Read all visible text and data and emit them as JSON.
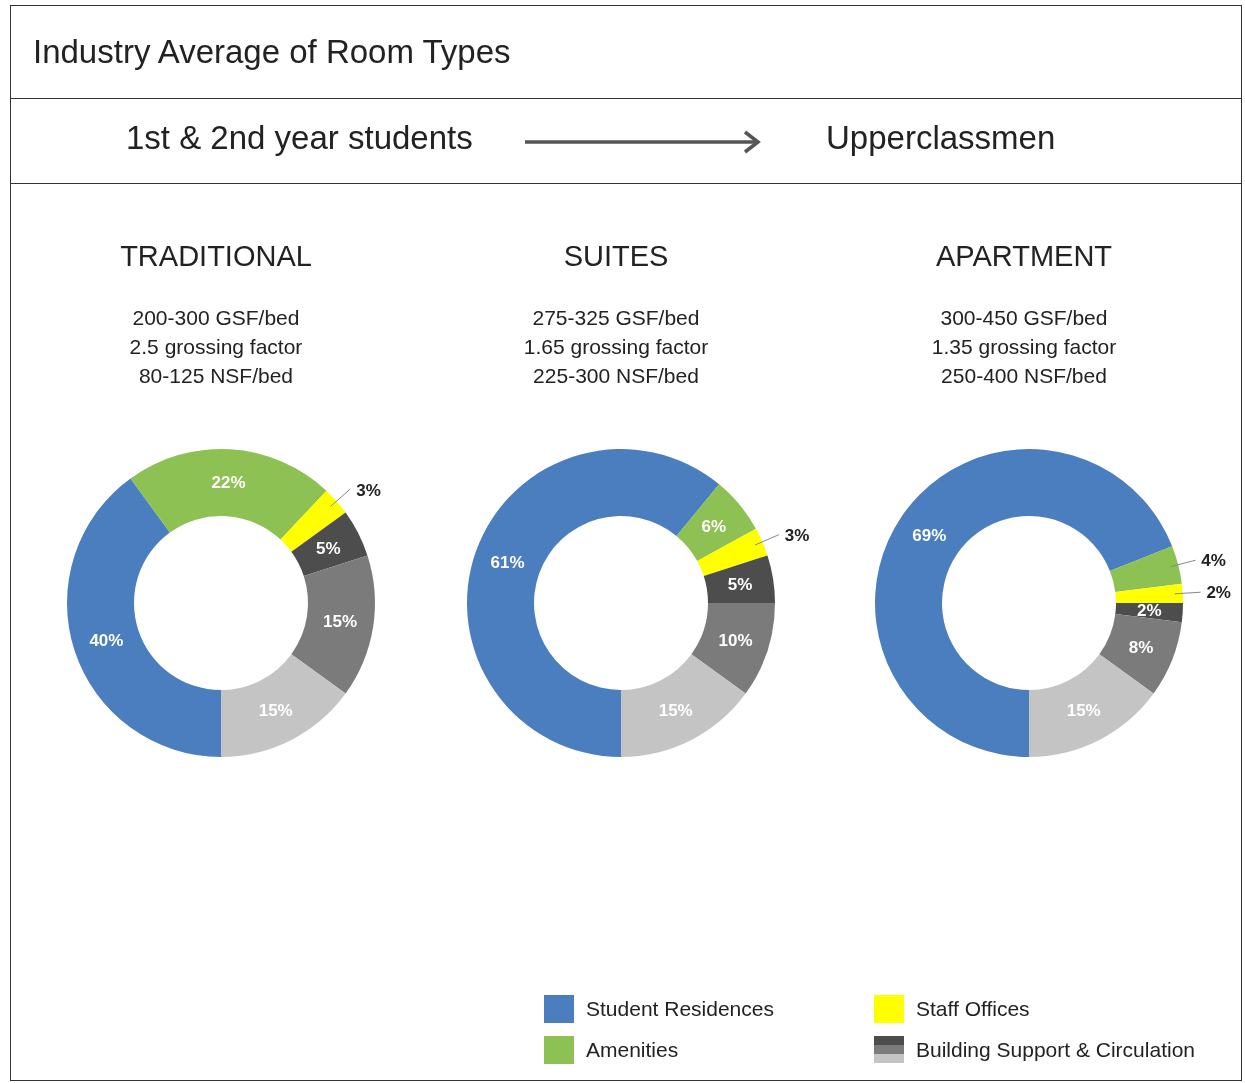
{
  "chart_data": [
    {
      "type": "other",
      "title": "Industry Average of Room Types",
      "annotations": [
        "1st & 2nd year students",
        "Upperclassmen"
      ]
    },
    {
      "type": "donut",
      "title": "TRADITIONAL",
      "subtitle": "200-300 GSF/bed\n2.5 grossing factor\n80-125 NSF/bed",
      "categories": [
        "Student Residences",
        "Amenities",
        "Staff Offices",
        "Building Support & Circulation",
        null,
        null
      ],
      "legend": "bottom",
      "values": [
        40,
        22,
        3,
        5,
        15,
        15
      ],
      "value_labels": [
        "40%",
        "22%",
        "3%",
        "5%",
        "15%",
        "15%"
      ],
      "colors": [
        "#4a7ebf",
        "#8dc153",
        "#ffff00",
        "#4d4d4d",
        "#7b7b7b",
        "#c4c4c4"
      ]
    },
    {
      "type": "donut",
      "title": "SUITES",
      "subtitle": "275-325 GSF/bed\n1.65 grossing factor\n225-300 NSF/bed",
      "values": [
        61,
        6,
        3,
        5,
        10,
        15
      ],
      "value_labels": [
        "61%",
        "6%",
        "3%",
        "5%",
        "10%",
        "15%"
      ],
      "colors": [
        "#4a7ebf",
        "#8dc153",
        "#ffff00",
        "#4d4d4d",
        "#7b7b7b",
        "#c4c4c4"
      ]
    },
    {
      "type": "donut",
      "title": "APARTMENT",
      "subtitle": "300-450 GSF/bed\n1.35 grossing factor\n250-400 NSF/bed",
      "values": [
        69,
        4,
        2,
        2,
        8,
        15
      ],
      "value_labels": [
        "69%",
        "4%",
        "2%",
        "2%",
        "8%",
        "15%"
      ],
      "colors": [
        "#4a7ebf",
        "#8dc153",
        "#ffff00",
        "#4d4d4d",
        "#7b7b7b",
        "#c4c4c4"
      ]
    }
  ]
}
